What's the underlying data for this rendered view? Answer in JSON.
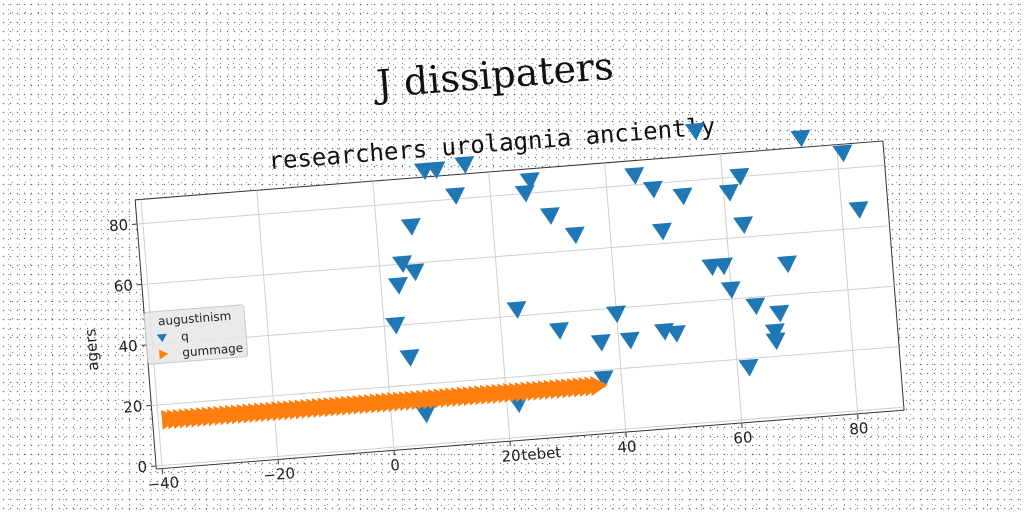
{
  "figure_title": "J dissipaters",
  "chart_data": {
    "type": "scatter",
    "title": "researchers urolagnia anciently",
    "xlabel": "tebet",
    "ylabel": "agers",
    "xlim": [
      -41,
      88
    ],
    "ylim": [
      -1,
      88
    ],
    "xticks": [
      -40,
      -20,
      0,
      20,
      40,
      60,
      80
    ],
    "xtick_labels": [
      "−40",
      "−20",
      "0",
      "20",
      "40",
      "60",
      "80"
    ],
    "yticks": [
      0,
      20,
      40,
      60,
      80
    ],
    "ytick_labels": [
      "0",
      "20",
      "40",
      "60",
      "80"
    ],
    "grid": true,
    "legend": {
      "title": "augustinism",
      "placement": "center-left",
      "entries": [
        "q",
        "gummage"
      ]
    },
    "series": [
      {
        "name": "q",
        "marker": "triangle-down",
        "color": "#1f77b4",
        "points": [
          [
            9,
            90
          ],
          [
            11,
            90
          ],
          [
            16,
            91
          ],
          [
            14,
            81
          ],
          [
            6,
            72
          ],
          [
            4,
            60
          ],
          [
            3,
            53
          ],
          [
            6,
            57
          ],
          [
            2,
            40
          ],
          [
            4,
            29
          ],
          [
            6,
            10
          ],
          [
            22,
            11
          ],
          [
            23,
            42
          ],
          [
            26,
            80
          ],
          [
            27,
            84
          ],
          [
            30,
            72
          ],
          [
            30,
            34
          ],
          [
            34,
            65
          ],
          [
            37,
            29
          ],
          [
            37,
            17
          ],
          [
            40,
            38
          ],
          [
            42,
            29
          ],
          [
            48,
            31
          ],
          [
            50,
            30
          ],
          [
            45,
            83
          ],
          [
            48,
            78
          ],
          [
            49,
            64
          ],
          [
            53,
            75
          ],
          [
            56,
            96
          ],
          [
            57,
            51
          ],
          [
            59,
            51
          ],
          [
            60,
            43
          ],
          [
            61,
            75
          ],
          [
            62,
            17
          ],
          [
            63,
            80
          ],
          [
            63,
            64
          ],
          [
            64,
            37
          ],
          [
            67,
            25
          ],
          [
            67,
            28
          ],
          [
            68,
            34
          ],
          [
            70,
            50
          ],
          [
            74,
            91
          ],
          [
            81,
            85
          ],
          [
            83,
            66
          ]
        ]
      },
      {
        "name": "gummage",
        "marker": "triangle-right",
        "color": "#ff7f0e",
        "x_start": -38,
        "x_end": 36,
        "x_step": 1,
        "y": 15
      }
    ]
  }
}
